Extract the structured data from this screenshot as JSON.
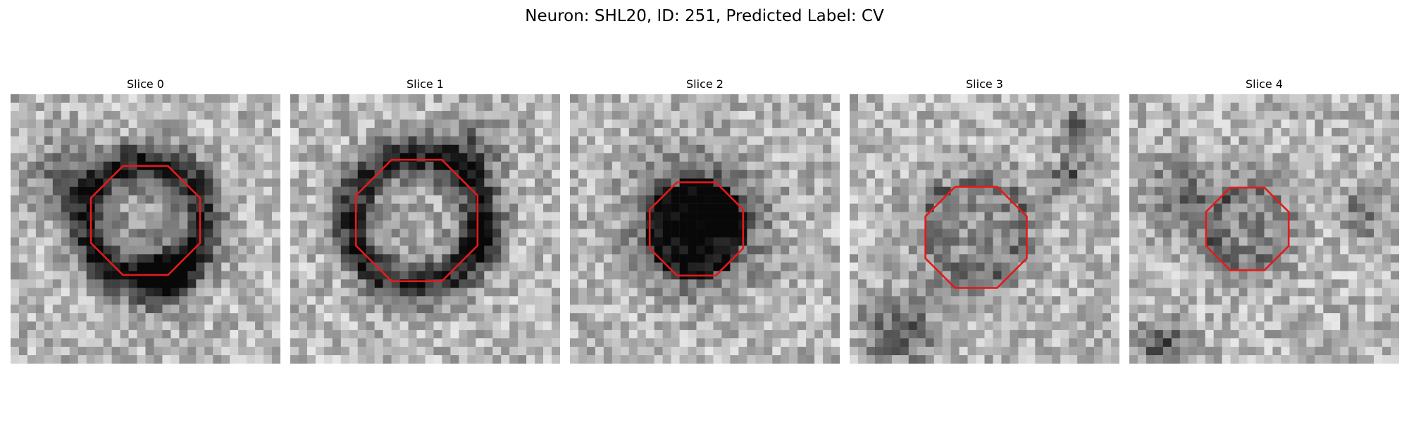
{
  "figure": {
    "title": "Neuron: SHL20, ID: 251, Predicted Label: CV"
  },
  "panels": [
    {
      "title": "Slice 0",
      "image": "grayscale-em-patch",
      "contour_color": "#e31a1c"
    },
    {
      "title": "Slice 1",
      "image": "grayscale-em-patch",
      "contour_color": "#e31a1c"
    },
    {
      "title": "Slice 2",
      "image": "grayscale-em-patch",
      "contour_color": "#e31a1c"
    },
    {
      "title": "Slice 3",
      "image": "grayscale-em-patch",
      "contour_color": "#e31a1c"
    },
    {
      "title": "Slice 4",
      "image": "grayscale-em-patch",
      "contour_color": "#e31a1c"
    }
  ]
}
